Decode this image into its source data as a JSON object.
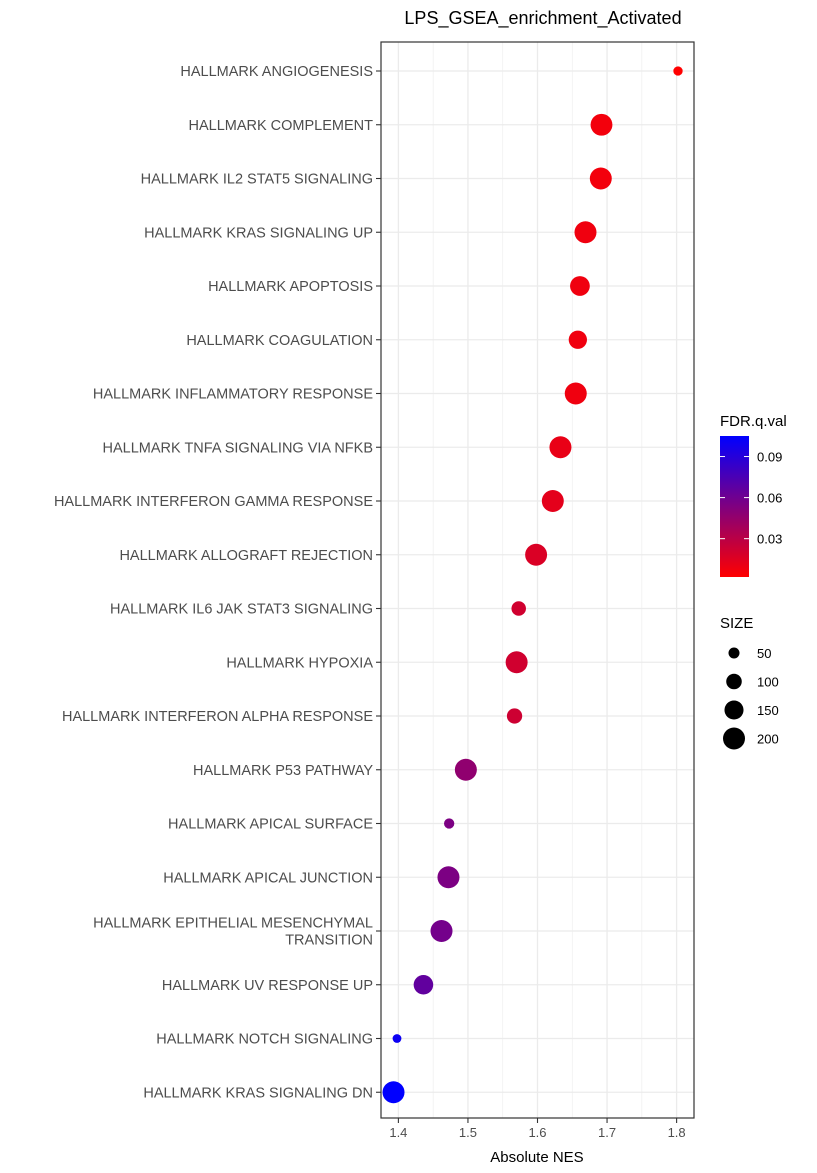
{
  "chart_data": {
    "type": "scatter",
    "title": "LPS_GSEA_enrichment_Activated",
    "xlabel": "Absolute NES",
    "ylabel": "",
    "xlim": [
      1.375,
      1.825
    ],
    "xticks": [
      1.4,
      1.5,
      1.6,
      1.7,
      1.8
    ],
    "grid": true,
    "points": [
      {
        "label": [
          "HALLMARK ANGIOGENESIS"
        ],
        "nes": 1.802,
        "fdr": 0.002,
        "size": 36
      },
      {
        "label": [
          "HALLMARK COMPLEMENT"
        ],
        "nes": 1.692,
        "fdr": 0.007,
        "size": 197
      },
      {
        "label": [
          "HALLMARK IL2 STAT5 SIGNALING"
        ],
        "nes": 1.691,
        "fdr": 0.007,
        "size": 199
      },
      {
        "label": [
          "HALLMARK KRAS SIGNALING UP"
        ],
        "nes": 1.669,
        "fdr": 0.008,
        "size": 200
      },
      {
        "label": [
          "HALLMARK APOPTOSIS"
        ],
        "nes": 1.661,
        "fdr": 0.008,
        "size": 161
      },
      {
        "label": [
          "HALLMARK COAGULATION"
        ],
        "nes": 1.658,
        "fdr": 0.008,
        "size": 138
      },
      {
        "label": [
          "HALLMARK INFLAMMATORY RESPONSE"
        ],
        "nes": 1.655,
        "fdr": 0.008,
        "size": 200
      },
      {
        "label": [
          "HALLMARK TNFA SIGNALING VIA NFKB"
        ],
        "nes": 1.633,
        "fdr": 0.011,
        "size": 200
      },
      {
        "label": [
          "HALLMARK INTERFERON GAMMA RESPONSE"
        ],
        "nes": 1.622,
        "fdr": 0.013,
        "size": 199
      },
      {
        "label": [
          "HALLMARK ALLOGRAFT REJECTION"
        ],
        "nes": 1.598,
        "fdr": 0.017,
        "size": 199
      },
      {
        "label": [
          "HALLMARK IL6 JAK STAT3 SIGNALING"
        ],
        "nes": 1.573,
        "fdr": 0.021,
        "size": 87
      },
      {
        "label": [
          "HALLMARK HYPOXIA"
        ],
        "nes": 1.57,
        "fdr": 0.021,
        "size": 200
      },
      {
        "label": [
          "HALLMARK INTERFERON ALPHA RESPONSE"
        ],
        "nes": 1.567,
        "fdr": 0.022,
        "size": 97
      },
      {
        "label": [
          "HALLMARK P53 PATHWAY"
        ],
        "nes": 1.497,
        "fdr": 0.047,
        "size": 200
      },
      {
        "label": [
          "HALLMARK APICAL SURFACE"
        ],
        "nes": 1.473,
        "fdr": 0.055,
        "size": 44
      },
      {
        "label": [
          "HALLMARK APICAL JUNCTION"
        ],
        "nes": 1.472,
        "fdr": 0.055,
        "size": 200
      },
      {
        "label": [
          "HALLMARK EPITHELIAL MESENCHYMAL",
          "TRANSITION"
        ],
        "nes": 1.462,
        "fdr": 0.058,
        "size": 200
      },
      {
        "label": [
          "HALLMARK UV RESPONSE UP"
        ],
        "nes": 1.436,
        "fdr": 0.066,
        "size": 158
      },
      {
        "label": [
          "HALLMARK NOTCH SIGNALING"
        ],
        "nes": 1.398,
        "fdr": 0.1,
        "size": 32
      },
      {
        "label": [
          "HALLMARK KRAS SIGNALING DN"
        ],
        "nes": 1.393,
        "fdr": 0.105,
        "size": 200
      }
    ],
    "color_legend": {
      "title": "FDR.q.val",
      "ticks": [
        0.03,
        0.06,
        0.09
      ],
      "tick_labels": [
        "0.03",
        "0.06",
        "0.09"
      ],
      "range": [
        0.002,
        0.105
      ],
      "low_color": "#FF0000",
      "high_color": "#0000FF"
    },
    "size_legend": {
      "title": "SIZE",
      "values": [
        50,
        100,
        150,
        200
      ],
      "labels": [
        "50",
        "100",
        "150",
        "200"
      ]
    },
    "legend_position": "right"
  }
}
